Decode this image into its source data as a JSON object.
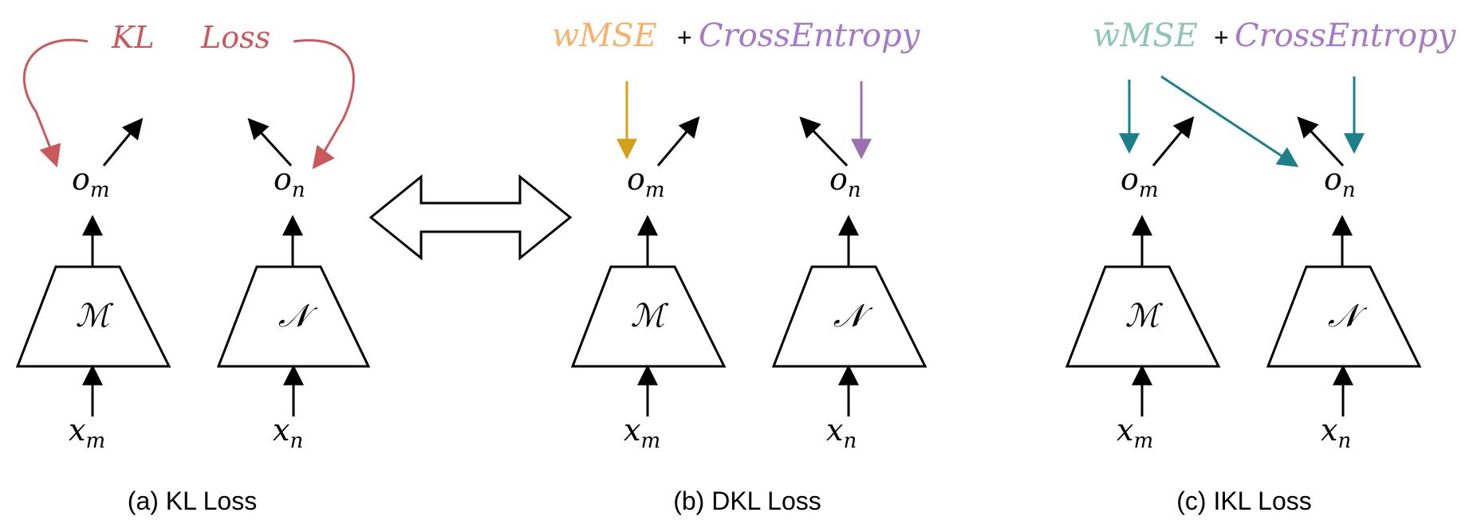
{
  "colors": {
    "kl": "#C9595A",
    "wmse": "#F6B26B",
    "ce": "#A678C6",
    "wbar": "#8DC5B5",
    "gold": "#D4A017",
    "purple": "#9B6FB0",
    "teal": "#1B8089",
    "black": "#000000"
  },
  "panel_a": {
    "loss_word1": "KL",
    "loss_word2": "Loss",
    "om": "o",
    "om_sub": "m",
    "on": "o",
    "on_sub": "n",
    "model_m": "ℳ",
    "model_n": "𝒩",
    "xm": "x",
    "xm_sub": "m",
    "xn": "x",
    "xn_sub": "n",
    "caption": "(a) KL Loss"
  },
  "panel_b": {
    "wmse": "wMSE",
    "plus": "+",
    "ce": "CrossEntropy",
    "om": "o",
    "om_sub": "m",
    "on": "o",
    "on_sub": "n",
    "model_m": "ℳ",
    "model_n": "𝒩",
    "xm": "x",
    "xm_sub": "m",
    "xn": "x",
    "xn_sub": "n",
    "caption": "(b) DKL Loss"
  },
  "panel_c": {
    "wmse": "w̄MSE",
    "plus": "+",
    "ce": "CrossEntropy",
    "om": "o",
    "om_sub": "m",
    "on": "o",
    "on_sub": "n",
    "model_m": "ℳ",
    "model_n": "𝒩",
    "xm": "x",
    "xm_sub": "m",
    "xn": "x",
    "xn_sub": "n",
    "caption": "(c) IKL Loss"
  }
}
